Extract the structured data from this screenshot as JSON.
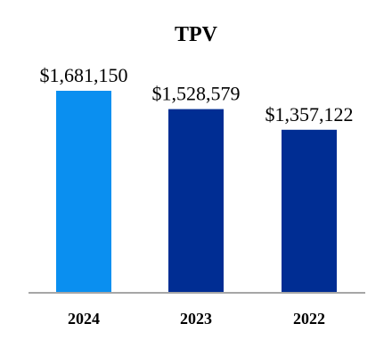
{
  "chart_data": {
    "type": "bar",
    "title": "TPV",
    "categories": [
      "2024",
      "2023",
      "2022"
    ],
    "values": [
      1681150,
      1528579,
      1357122
    ],
    "data_labels": [
      "$1,681,150",
      "$1,528,579",
      "$1,357,122"
    ],
    "bar_colors": [
      "#0A8FF0",
      "#002D93",
      "#002D93"
    ],
    "axis_color": "#A6A6A6",
    "ylim": [
      0,
      1881150
    ],
    "grid": false,
    "legend": "none",
    "xlabel": "",
    "ylabel": ""
  }
}
